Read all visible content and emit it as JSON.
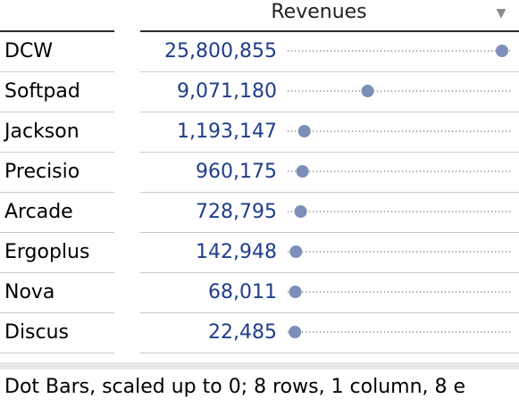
{
  "column_header": "Revenues",
  "filter_icon": "filter-icon",
  "dot_color": "#7b8fb8",
  "rows": [
    {
      "name": "DCW",
      "value_label": "25,800,855",
      "value": 25800855
    },
    {
      "name": "Softpad",
      "value_label": "9,071,180",
      "value": 9071180
    },
    {
      "name": "Jackson",
      "value_label": "1,193,147",
      "value": 1193147
    },
    {
      "name": "Precisio",
      "value_label": "960,175",
      "value": 960175
    },
    {
      "name": "Arcade",
      "value_label": "728,795",
      "value": 728795
    },
    {
      "name": "Ergoplus",
      "value_label": "142,948",
      "value": 142948
    },
    {
      "name": "Nova",
      "value_label": "68,011",
      "value": 68011
    },
    {
      "name": "Discus",
      "value_label": "22,485",
      "value": 22485
    }
  ],
  "status_text": "Dot Bars, scaled up to 0; 8 rows, 1 column, 8 e"
}
